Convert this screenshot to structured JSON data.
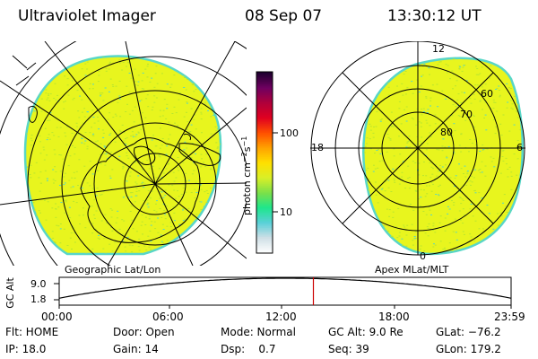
{
  "header": {
    "instrument": "Ultraviolet Imager",
    "date": "08 Sep 07",
    "time": "13:30:12 UT"
  },
  "colors": {
    "fill": "#e8f51e",
    "speckle": "#b9e62e",
    "edge": "#58d6c7",
    "line": "#000000",
    "marker": "#cc0000"
  },
  "colorbar": {
    "label_main": "photon cm",
    "label_sup1": "−2",
    "label_s": "s",
    "label_sup2": "−1",
    "ticks": [
      "100",
      "10"
    ],
    "stops": [
      "#ffffff",
      "#cfdfe6",
      "#5ad0d8",
      "#1ee68c",
      "#7be04a",
      "#d9ef28",
      "#ffe000",
      "#ffa200",
      "#ff5000",
      "#e00020",
      "#b0003a",
      "#700060",
      "#200030"
    ]
  },
  "panels": {
    "left_caption": "Geographic Lat/Lon",
    "right_caption": "Apex MLat/MLT"
  },
  "polar": {
    "mlt_labels": [
      "12",
      "18",
      "6",
      "0"
    ],
    "mlat_labels": [
      "60",
      "70",
      "80"
    ]
  },
  "altitude": {
    "axis_label": "GC Alt",
    "y_ticks": [
      "9.0",
      "1.8"
    ],
    "x_ticks": [
      "00:00",
      "06:00",
      "12:00",
      "18:00",
      "23:59"
    ],
    "marker_time": "13:30"
  },
  "status": {
    "row1": [
      "Flt: HOME",
      "Door: Open",
      "Mode: Normal",
      "GC Alt: 9.0 Re",
      "GLat: −76.2"
    ],
    "row2": [
      "IP: 18.0",
      "Gain: 14",
      "Dsp:    0.7",
      "Seq: 39",
      "GLon: 179.2"
    ]
  }
}
